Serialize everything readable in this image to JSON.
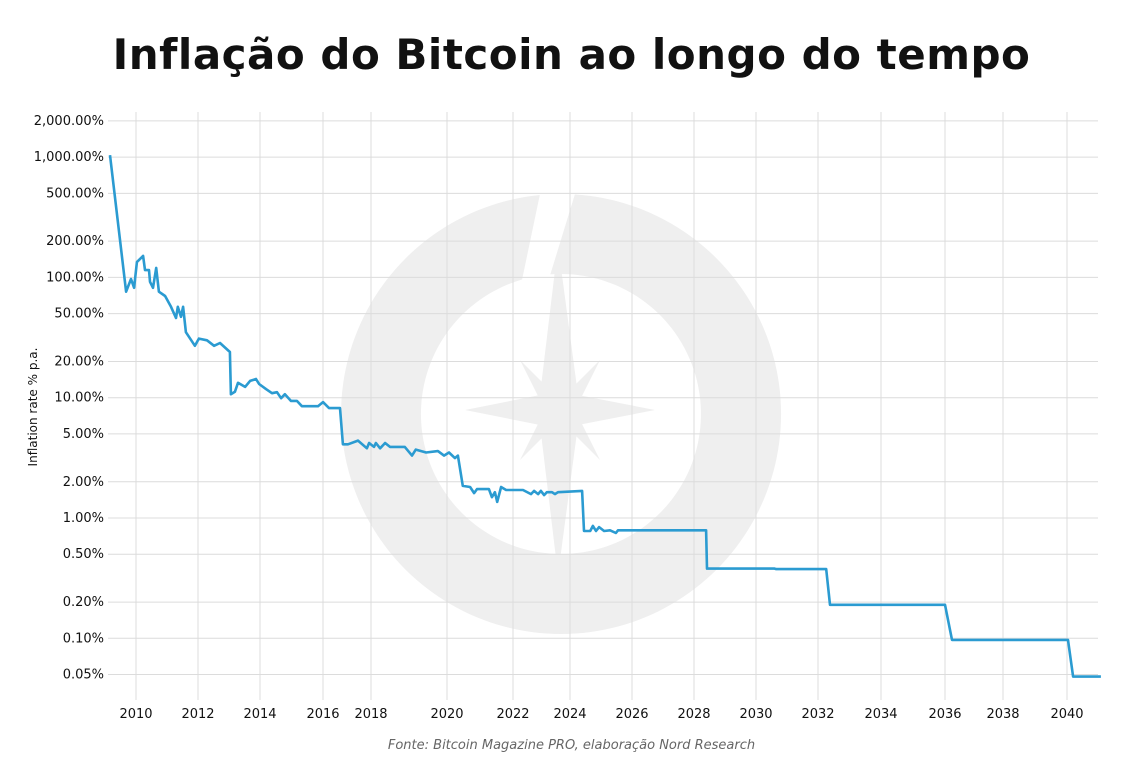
{
  "chart_data": {
    "type": "line",
    "title": "Inflação do Bitcoin ao longo do tempo",
    "xlabel": "",
    "ylabel": "Inflation rate % p.a.",
    "source": "Fonte: Bitcoin Magazine PRO, elaboração Nord Research",
    "y_scale": "log",
    "ylim": [
      0.04,
      2200
    ],
    "xlim": [
      2009.1,
      2041.1
    ],
    "grid": true,
    "line_color": "#2b9bd1",
    "x_ticks": [
      2010,
      2012,
      2014,
      2016,
      2018,
      2020,
      2022,
      2024,
      2026,
      2028,
      2030,
      2032,
      2034,
      2036,
      2038,
      2040
    ],
    "x_tick_labels": [
      "2010",
      "2012",
      "2014",
      "2016",
      "2018",
      "2020",
      "2022",
      "2024",
      "2026",
      "2028",
      "2030",
      "2032",
      "2034",
      "2036",
      "2038",
      "2040"
    ],
    "y_ticks": [
      2000,
      1000,
      500,
      200,
      100,
      50,
      20,
      10,
      5,
      2,
      1,
      0.5,
      0.2,
      0.1,
      0.05
    ],
    "y_tick_labels": [
      "2,000.00%",
      "1,000.00%",
      "500.00%",
      "200.00%",
      "100.00%",
      "50.00%",
      "20.00%",
      "10.00%",
      "5.00%",
      "2.00%",
      "1.00%",
      "0.50%",
      "0.20%",
      "0.10%",
      "0.05%"
    ],
    "series": [
      {
        "x": [
          2009.16,
          2009.68,
          2009.84,
          2009.94,
          2010.03,
          2010.23,
          2010.29,
          2010.42,
          2010.45,
          2010.55,
          2010.65,
          2010.74,
          2010.94,
          2011.13,
          2011.29,
          2011.35,
          2011.45,
          2011.52,
          2011.61,
          2011.9,
          2012.03,
          2012.29,
          2012.52,
          2012.71,
          2013.03,
          2013.06,
          2013.19,
          2013.29,
          2013.52,
          2013.68,
          2013.87,
          2013.97,
          2014.19,
          2014.38,
          2014.54,
          2014.67,
          2014.79,
          2014.98,
          2015.17,
          2015.33,
          2015.84,
          2016.0,
          2016.25,
          2016.71,
          2016.83,
          2017.04,
          2017.46,
          2017.83,
          2017.92,
          2018.08,
          2018.13,
          2018.24,
          2018.37,
          2018.5,
          2018.89,
          2019.08,
          2019.18,
          2019.45,
          2019.76,
          2019.92,
          2020.06,
          2020.24,
          2020.33,
          2020.48,
          2020.7,
          2020.82,
          2020.91,
          2021.27,
          2021.36,
          2021.45,
          2021.52,
          2021.64,
          2021.79,
          2022.35,
          2022.63,
          2022.74,
          2022.88,
          2022.98,
          2023.09,
          2023.19,
          2023.37,
          2023.47,
          2023.58,
          2024.39,
          2024.45,
          2024.65,
          2024.74,
          2024.84,
          2024.94,
          2025.1,
          2025.29,
          2025.48,
          2025.55,
          2028.39,
          2028.42,
          2030.6,
          2030.65,
          2032.26,
          2032.38,
          2036.0,
          2036.24,
          2040.03,
          2040.19,
          2041.06
        ],
        "values": [
          1040,
          76,
          97,
          82,
          134,
          151,
          115,
          115,
          92,
          82,
          120,
          76,
          70,
          57,
          46,
          57,
          47,
          57,
          35,
          27,
          31,
          30,
          27,
          28.5,
          24,
          10.7,
          11.2,
          13.3,
          12.3,
          13.8,
          14.3,
          13,
          11.8,
          10.9,
          11.1,
          9.9,
          10.7,
          9.4,
          9.4,
          8.5,
          8.5,
          9.2,
          8.2,
          8.2,
          4.1,
          4.1,
          4.4,
          3.8,
          4.2,
          3.9,
          4.2,
          3.8,
          4.2,
          3.9,
          3.9,
          3.3,
          3.7,
          3.5,
          3.6,
          3.3,
          3.5,
          3.15,
          3.3,
          1.85,
          1.81,
          1.61,
          1.74,
          1.74,
          1.49,
          1.64,
          1.36,
          1.81,
          1.71,
          1.71,
          1.58,
          1.68,
          1.58,
          1.68,
          1.55,
          1.64,
          1.64,
          1.58,
          1.64,
          1.68,
          0.78,
          0.78,
          0.86,
          0.78,
          0.84,
          0.78,
          0.79,
          0.75,
          0.79,
          0.79,
          0.38,
          0.38,
          0.376,
          0.376,
          0.19,
          0.19,
          0.097,
          0.097,
          0.048,
          0.048
        ]
      }
    ]
  },
  "watermark": {
    "icon": "compass-star-logo",
    "color": "#efefef"
  }
}
